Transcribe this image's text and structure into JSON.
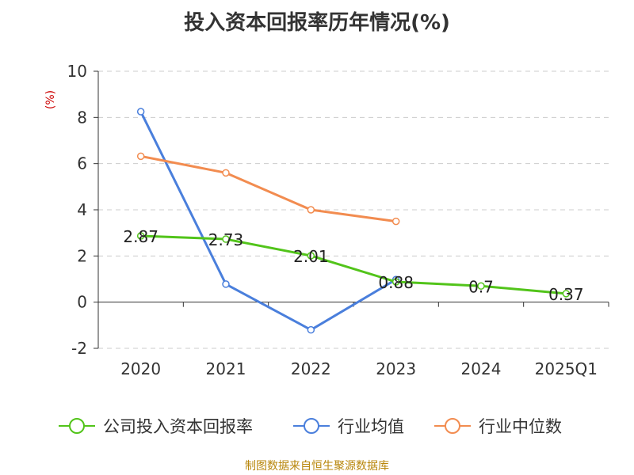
{
  "chart_data": {
    "type": "line",
    "title": "投入资本回报率历年情况(%)",
    "ylabel": "(%)",
    "xlabel": "",
    "categories": [
      "2020",
      "2021",
      "2022",
      "2023",
      "2024",
      "2025Q1"
    ],
    "ylim": [
      -2,
      10
    ],
    "yticks": [
      -2,
      0,
      2,
      4,
      6,
      8,
      10
    ],
    "grid": true,
    "legend_position": "bottom",
    "series": [
      {
        "name": "公司投入资本回报率",
        "color": "#52c41a",
        "values": [
          2.87,
          2.73,
          2.01,
          0.88,
          0.7,
          0.37
        ],
        "labels": [
          "2.87",
          "2.73",
          "2.01",
          "0.88",
          "0.7",
          "0.37"
        ]
      },
      {
        "name": "行业均值",
        "color": "#4a7fdc",
        "values": [
          8.25,
          0.78,
          -1.2,
          0.98,
          null,
          null
        ]
      },
      {
        "name": "行业中位数",
        "color": "#f28c50",
        "values": [
          6.32,
          5.6,
          4.0,
          3.5,
          null,
          null
        ]
      }
    ]
  },
  "footer": {
    "source": "制图数据来自恒生聚源数据库"
  }
}
